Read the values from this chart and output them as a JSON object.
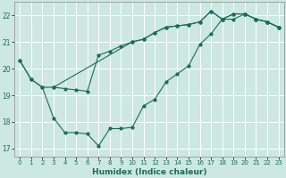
{
  "xlabel": "Humidex (Indice chaleur)",
  "xlim": [
    -0.5,
    23.5
  ],
  "ylim": [
    16.7,
    22.5
  ],
  "xticks": [
    0,
    1,
    2,
    3,
    4,
    5,
    6,
    7,
    8,
    9,
    10,
    11,
    12,
    13,
    14,
    15,
    16,
    17,
    18,
    19,
    20,
    21,
    22,
    23
  ],
  "yticks": [
    17,
    18,
    19,
    20,
    21,
    22
  ],
  "bg_color": "#cce8e0",
  "line_color": "#1a6b5a",
  "grid_color": "#ffffff",
  "line1_x": [
    0,
    1,
    2,
    3,
    10,
    11,
    12,
    13,
    14,
    15,
    16,
    17,
    18,
    19,
    20,
    21,
    22,
    23
  ],
  "line1_y": [
    20.3,
    19.6,
    19.3,
    19.3,
    21.0,
    21.1,
    21.35,
    21.55,
    21.6,
    21.65,
    21.75,
    22.15,
    21.85,
    22.05,
    22.05,
    21.85,
    21.75,
    21.55
  ],
  "line2_x": [
    0,
    1,
    2,
    3,
    4,
    5,
    6,
    7,
    8,
    9,
    10,
    11,
    12,
    13,
    14,
    15,
    16,
    17,
    18,
    19,
    20,
    21,
    22,
    23
  ],
  "line2_y": [
    20.3,
    19.6,
    19.3,
    18.15,
    17.6,
    17.6,
    17.55,
    17.1,
    17.75,
    17.75,
    17.8,
    18.6,
    18.85,
    19.5,
    19.8,
    20.1,
    20.9,
    21.3,
    21.85,
    21.85,
    22.05,
    21.85,
    21.75,
    21.55
  ],
  "line3_x": [
    3,
    4,
    5,
    6,
    7,
    8,
    9,
    10,
    11,
    12,
    13,
    14,
    15,
    16,
    17,
    18,
    19,
    20,
    21,
    22,
    23
  ],
  "line3_y": [
    19.3,
    19.25,
    19.2,
    19.15,
    20.5,
    20.65,
    20.85,
    21.0,
    21.1,
    21.35,
    21.55,
    21.6,
    21.65,
    21.75,
    22.15,
    21.85,
    22.05,
    22.05,
    21.85,
    21.75,
    21.55
  ],
  "tick_fontsize": 5.0,
  "xlabel_fontsize": 6.5
}
